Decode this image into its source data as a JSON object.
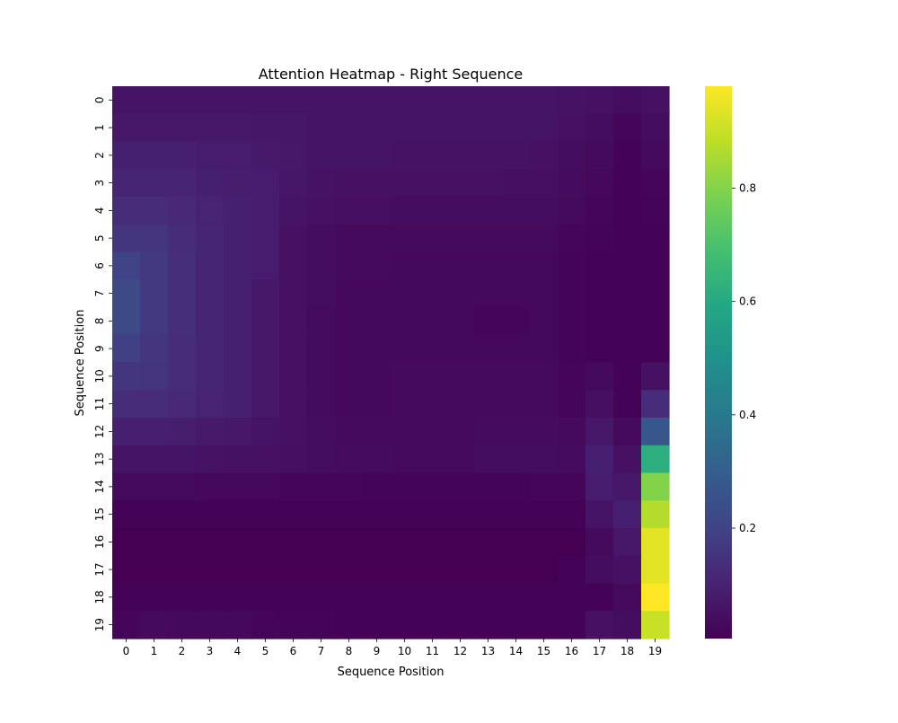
{
  "chart_data": {
    "type": "heatmap",
    "title": "Attention Heatmap - Right Sequence",
    "xlabel": "Sequence Position",
    "ylabel": "Sequence Position",
    "x_ticks": [
      "0",
      "1",
      "2",
      "3",
      "4",
      "5",
      "6",
      "7",
      "8",
      "9",
      "10",
      "11",
      "12",
      "13",
      "14",
      "15",
      "16",
      "17",
      "18",
      "19"
    ],
    "y_ticks": [
      "0",
      "1",
      "2",
      "3",
      "4",
      "5",
      "6",
      "7",
      "8",
      "9",
      "10",
      "11",
      "12",
      "13",
      "14",
      "15",
      "16",
      "17",
      "18",
      "19"
    ],
    "colormap": "viridis",
    "value_range": [
      0.005,
      0.98
    ],
    "colorbar_ticks": [
      0.2,
      0.4,
      0.6,
      0.8
    ],
    "colorbar_tick_labels": [
      "0.2",
      "0.4",
      "0.6",
      "0.8"
    ],
    "values": [
      [
        0.06,
        0.06,
        0.06,
        0.06,
        0.06,
        0.06,
        0.06,
        0.06,
        0.06,
        0.06,
        0.06,
        0.06,
        0.06,
        0.06,
        0.06,
        0.06,
        0.055,
        0.05,
        0.04,
        0.05
      ],
      [
        0.07,
        0.07,
        0.07,
        0.07,
        0.07,
        0.065,
        0.065,
        0.06,
        0.06,
        0.06,
        0.06,
        0.06,
        0.06,
        0.06,
        0.06,
        0.06,
        0.05,
        0.04,
        0.02,
        0.04
      ],
      [
        0.09,
        0.09,
        0.09,
        0.08,
        0.08,
        0.075,
        0.07,
        0.06,
        0.06,
        0.06,
        0.055,
        0.055,
        0.055,
        0.055,
        0.055,
        0.05,
        0.04,
        0.03,
        0.01,
        0.03
      ],
      [
        0.11,
        0.11,
        0.105,
        0.09,
        0.085,
        0.08,
        0.065,
        0.055,
        0.05,
        0.05,
        0.05,
        0.05,
        0.05,
        0.05,
        0.045,
        0.045,
        0.035,
        0.025,
        0.01,
        0.02
      ],
      [
        0.13,
        0.13,
        0.12,
        0.1,
        0.09,
        0.08,
        0.06,
        0.05,
        0.045,
        0.045,
        0.04,
        0.04,
        0.04,
        0.04,
        0.04,
        0.04,
        0.03,
        0.02,
        0.01,
        0.015
      ],
      [
        0.16,
        0.16,
        0.13,
        0.11,
        0.09,
        0.08,
        0.05,
        0.04,
        0.03,
        0.03,
        0.03,
        0.03,
        0.03,
        0.03,
        0.03,
        0.03,
        0.02,
        0.015,
        0.01,
        0.01
      ],
      [
        0.2,
        0.17,
        0.14,
        0.11,
        0.09,
        0.08,
        0.05,
        0.04,
        0.03,
        0.03,
        0.025,
        0.025,
        0.025,
        0.025,
        0.025,
        0.025,
        0.015,
        0.01,
        0.01,
        0.01
      ],
      [
        0.22,
        0.17,
        0.14,
        0.11,
        0.09,
        0.07,
        0.05,
        0.04,
        0.025,
        0.025,
        0.025,
        0.025,
        0.025,
        0.025,
        0.025,
        0.025,
        0.015,
        0.01,
        0.01,
        0.01
      ],
      [
        0.22,
        0.17,
        0.14,
        0.11,
        0.09,
        0.07,
        0.05,
        0.035,
        0.025,
        0.025,
        0.025,
        0.025,
        0.025,
        0.02,
        0.02,
        0.025,
        0.015,
        0.01,
        0.01,
        0.01
      ],
      [
        0.19,
        0.16,
        0.13,
        0.11,
        0.09,
        0.07,
        0.05,
        0.035,
        0.025,
        0.025,
        0.025,
        0.025,
        0.025,
        0.025,
        0.025,
        0.025,
        0.015,
        0.01,
        0.01,
        0.01
      ],
      [
        0.16,
        0.15,
        0.13,
        0.11,
        0.09,
        0.07,
        0.05,
        0.035,
        0.025,
        0.025,
        0.03,
        0.03,
        0.03,
        0.03,
        0.03,
        0.03,
        0.02,
        0.03,
        0.01,
        0.05
      ],
      [
        0.13,
        0.13,
        0.12,
        0.1,
        0.09,
        0.07,
        0.05,
        0.035,
        0.025,
        0.025,
        0.03,
        0.03,
        0.03,
        0.03,
        0.03,
        0.03,
        0.02,
        0.045,
        0.01,
        0.13
      ],
      [
        0.09,
        0.09,
        0.085,
        0.075,
        0.07,
        0.06,
        0.05,
        0.04,
        0.03,
        0.03,
        0.03,
        0.03,
        0.03,
        0.035,
        0.035,
        0.035,
        0.03,
        0.07,
        0.03,
        0.27
      ],
      [
        0.06,
        0.06,
        0.06,
        0.055,
        0.05,
        0.05,
        0.045,
        0.04,
        0.035,
        0.035,
        0.03,
        0.03,
        0.03,
        0.04,
        0.04,
        0.04,
        0.035,
        0.09,
        0.05,
        0.62
      ],
      [
        0.03,
        0.03,
        0.03,
        0.025,
        0.025,
        0.025,
        0.02,
        0.02,
        0.02,
        0.015,
        0.015,
        0.015,
        0.015,
        0.015,
        0.015,
        0.02,
        0.02,
        0.08,
        0.07,
        0.8
      ],
      [
        0.01,
        0.01,
        0.01,
        0.01,
        0.01,
        0.01,
        0.01,
        0.01,
        0.01,
        0.01,
        0.01,
        0.01,
        0.01,
        0.01,
        0.01,
        0.01,
        0.01,
        0.06,
        0.09,
        0.87
      ],
      [
        0.005,
        0.005,
        0.005,
        0.005,
        0.005,
        0.005,
        0.005,
        0.005,
        0.005,
        0.005,
        0.005,
        0.005,
        0.005,
        0.005,
        0.005,
        0.005,
        0.005,
        0.03,
        0.07,
        0.94
      ],
      [
        0.005,
        0.005,
        0.005,
        0.005,
        0.005,
        0.005,
        0.005,
        0.005,
        0.005,
        0.005,
        0.005,
        0.005,
        0.005,
        0.005,
        0.005,
        0.005,
        0.01,
        0.04,
        0.05,
        0.94
      ],
      [
        0.01,
        0.01,
        0.01,
        0.01,
        0.01,
        0.01,
        0.01,
        0.01,
        0.01,
        0.01,
        0.01,
        0.01,
        0.01,
        0.01,
        0.01,
        0.01,
        0.01,
        0.01,
        0.03,
        0.98
      ],
      [
        0.02,
        0.03,
        0.025,
        0.025,
        0.025,
        0.02,
        0.015,
        0.015,
        0.01,
        0.01,
        0.01,
        0.01,
        0.01,
        0.01,
        0.01,
        0.01,
        0.01,
        0.05,
        0.04,
        0.9
      ]
    ]
  }
}
